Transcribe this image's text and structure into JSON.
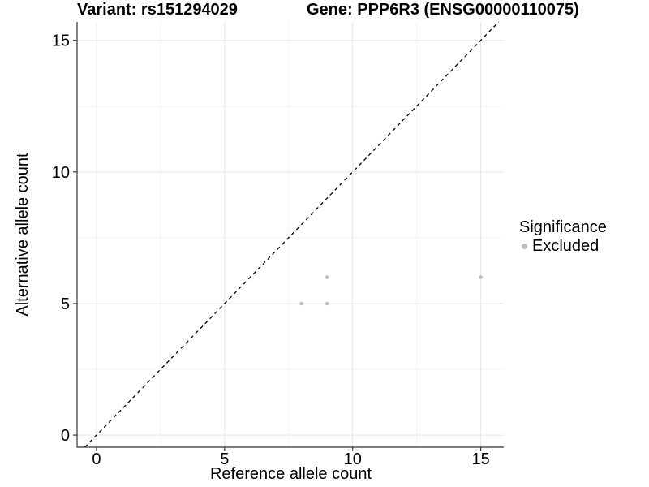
{
  "chart_data": {
    "type": "scatter",
    "title_left": "Variant: rs151294029",
    "title_right": "Gene: PPP6R3 (ENSG00000110075)",
    "xlabel": "Reference allele count",
    "ylabel": "Alternative allele count",
    "xticks": [
      0,
      5,
      10,
      15
    ],
    "yticks": [
      0,
      5,
      10,
      15
    ],
    "minor_gridlines_x": [
      2.5,
      7.5,
      12.5
    ],
    "minor_gridlines_y": [
      2.5,
      7.5,
      12.5
    ],
    "xlim": [
      -0.76,
      15.9
    ],
    "ylim": [
      -0.46,
      15.7
    ],
    "grid": true,
    "reference_line": {
      "type": "identity",
      "slope": 1,
      "intercept": 0,
      "style": "dashed",
      "color": "#000000"
    },
    "series": [
      {
        "name": "Excluded",
        "color": "#bebebe",
        "points": [
          [
            8,
            5
          ],
          [
            9,
            5
          ],
          [
            9,
            6
          ],
          [
            15,
            6
          ]
        ]
      }
    ],
    "legend": {
      "title": "Significance",
      "position": "right",
      "items": [
        {
          "label": "Excluded",
          "color": "#bebebe",
          "marker": "dot"
        }
      ]
    },
    "colors": {
      "background": "#ffffff",
      "grid_major": "#e6e6e6",
      "grid_minor": "#f3f3f3",
      "axis": "#333333",
      "text": "#000000",
      "point": "#bebebe"
    }
  }
}
